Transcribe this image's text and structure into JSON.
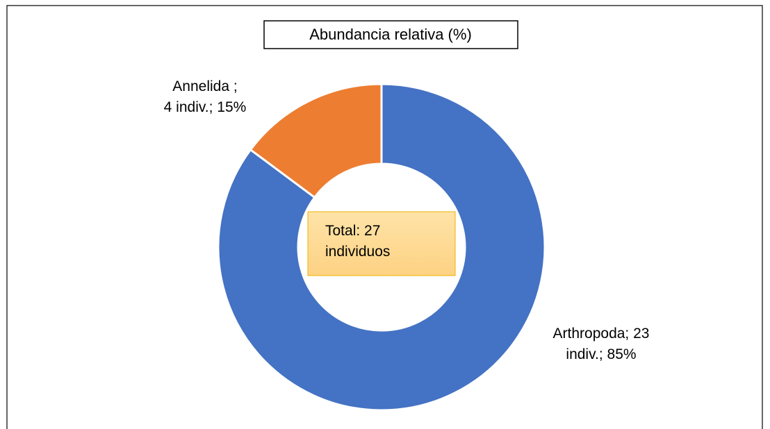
{
  "chart_data": {
    "type": "donut",
    "title": "Abundancia relativa (%)",
    "categories": [
      "Arthropoda",
      "Annelida"
    ],
    "values": [
      23,
      4
    ],
    "value_labels": [
      "Arthropoda; 23\nindiv.; 85%",
      "Annelida ;\n4 indiv.; 15%"
    ],
    "colors": [
      "#4472c4",
      "#ed7d31"
    ],
    "annotation": "Total: 27\nindividuos"
  }
}
